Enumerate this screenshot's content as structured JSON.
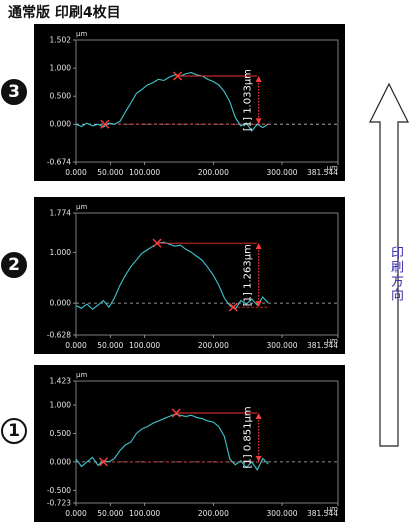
{
  "header": {
    "title": "通常版 印刷4枚目"
  },
  "direction": {
    "label": "印刷方向"
  },
  "chart_data": [
    {
      "type": "line",
      "badge": "3",
      "unit_y": "μm",
      "unit_x": "μm",
      "y_ticks": [
        "1.502",
        "1.000",
        "0.500",
        "0.000",
        "-0.674"
      ],
      "y_tick_values": [
        1.502,
        1.0,
        0.5,
        0.0,
        -0.674
      ],
      "x_ticks": [
        "0.000",
        "50.000",
        "100.000",
        "200.000",
        "300.000",
        "381.544"
      ],
      "x_tick_values": [
        0,
        50,
        100,
        200,
        300,
        381.544
      ],
      "ylim": [
        -0.674,
        1.502
      ],
      "xlim": [
        0,
        381.544
      ],
      "annotation": "[1] 1.033μm",
      "peak_marker": {
        "x": 148,
        "y": 0.86
      },
      "base_marker": {
        "x": 42,
        "y": 0.0
      },
      "series": [
        {
          "x": [
            0,
            8,
            16,
            24,
            32,
            40,
            48,
            56,
            64,
            72,
            80,
            88,
            96,
            104,
            112,
            120,
            128,
            136,
            144,
            152,
            160,
            168,
            176,
            184,
            192,
            200,
            208,
            216,
            224,
            232,
            240,
            248,
            256,
            264,
            272,
            280
          ],
          "y": [
            0.0,
            -0.04,
            0.02,
            -0.03,
            0.0,
            -0.05,
            0.02,
            0.0,
            0.05,
            0.22,
            0.38,
            0.55,
            0.62,
            0.7,
            0.74,
            0.8,
            0.78,
            0.84,
            0.88,
            0.86,
            0.9,
            0.92,
            0.88,
            0.86,
            0.8,
            0.76,
            0.7,
            0.58,
            0.4,
            0.12,
            -0.03,
            0.02,
            -0.12,
            0.0,
            -0.06,
            0.0
          ]
        }
      ]
    },
    {
      "type": "line",
      "badge": "2",
      "unit_y": "μm",
      "unit_x": "μm",
      "y_ticks": [
        "1.774",
        "1.000",
        "0.000",
        "-0.628"
      ],
      "y_tick_values": [
        1.774,
        1.0,
        0.0,
        -0.628
      ],
      "x_ticks": [
        "0.000",
        "50.000",
        "100.000",
        "200.000",
        "300.000",
        "381.544"
      ],
      "x_tick_values": [
        0,
        50,
        100,
        200,
        300,
        381.544
      ],
      "ylim": [
        -0.628,
        1.774
      ],
      "xlim": [
        0,
        381.544
      ],
      "annotation": "[1] 1.263μm",
      "peak_marker": {
        "x": 118,
        "y": 1.18
      },
      "base_marker": {
        "x": 229,
        "y": -0.08
      },
      "series": [
        {
          "x": [
            0,
            8,
            16,
            24,
            32,
            40,
            48,
            56,
            64,
            72,
            80,
            88,
            96,
            104,
            112,
            120,
            128,
            136,
            144,
            152,
            160,
            168,
            176,
            184,
            192,
            200,
            208,
            216,
            224,
            232,
            240,
            248,
            256,
            264,
            272,
            280
          ],
          "y": [
            -0.05,
            -0.1,
            -0.02,
            -0.12,
            -0.04,
            0.05,
            -0.08,
            0.1,
            0.35,
            0.55,
            0.72,
            0.85,
            0.98,
            1.05,
            1.12,
            1.18,
            1.2,
            1.16,
            1.12,
            1.14,
            1.06,
            1.0,
            0.92,
            0.84,
            0.7,
            0.55,
            0.35,
            0.1,
            -0.05,
            -0.12,
            0.05,
            -0.02,
            0.08,
            -0.04,
            0.12,
            0.0
          ]
        }
      ]
    },
    {
      "type": "line",
      "badge": "1",
      "unit_y": "μm",
      "unit_x": "μm",
      "y_ticks": [
        "1.423",
        "1.000",
        "0.500",
        "0.000",
        "-0.500",
        "-0.723"
      ],
      "y_tick_values": [
        1.423,
        1.0,
        0.5,
        0.0,
        -0.5,
        -0.723
      ],
      "x_ticks": [
        "0.000",
        "50.000",
        "100.000",
        "200.000",
        "300.000",
        "381.544"
      ],
      "x_tick_values": [
        0,
        50,
        100,
        200,
        300,
        381.544
      ],
      "ylim": [
        -0.723,
        1.423
      ],
      "xlim": [
        0,
        381.544
      ],
      "annotation": "[1] 0.851μm",
      "peak_marker": {
        "x": 146,
        "y": 0.86
      },
      "base_marker": {
        "x": 40,
        "y": 0.0
      },
      "series": [
        {
          "x": [
            0,
            8,
            16,
            24,
            32,
            40,
            48,
            56,
            64,
            72,
            80,
            88,
            96,
            104,
            112,
            120,
            128,
            136,
            144,
            152,
            160,
            168,
            176,
            184,
            192,
            200,
            208,
            216,
            224,
            232,
            240,
            248,
            256,
            264,
            272,
            280
          ],
          "y": [
            0.05,
            -0.08,
            0.0,
            0.08,
            -0.06,
            0.02,
            0.0,
            0.06,
            0.2,
            0.3,
            0.35,
            0.5,
            0.58,
            0.62,
            0.68,
            0.72,
            0.76,
            0.8,
            0.84,
            0.82,
            0.8,
            0.82,
            0.78,
            0.76,
            0.72,
            0.7,
            0.62,
            0.45,
            0.05,
            -0.05,
            0.02,
            -0.1,
            0.0,
            -0.14,
            0.06,
            -0.04
          ]
        }
      ]
    }
  ]
}
